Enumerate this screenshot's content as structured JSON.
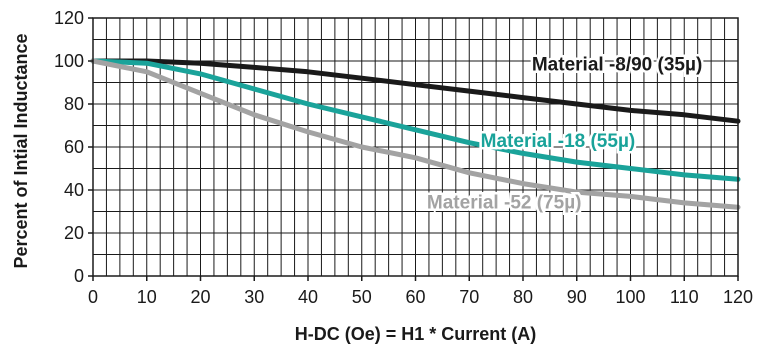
{
  "chart_data": {
    "type": "line",
    "title": "",
    "xlabel": "H-DC (Oe) = H1 * Current (A)",
    "ylabel": "Percent of Intial Inductance",
    "xlim": [
      0,
      120
    ],
    "ylim": [
      0,
      120
    ],
    "x_ticks": [
      "0",
      "10",
      "20",
      "30",
      "40",
      "50",
      "60",
      "70",
      "80",
      "90",
      "100",
      "110",
      "120"
    ],
    "y_ticks": [
      "0",
      "20",
      "40",
      "60",
      "80",
      "100",
      "120"
    ],
    "grid": true,
    "series": [
      {
        "name": "Material -8/90 (35µ)",
        "color": "#1a1a1a",
        "points": [
          [
            0,
            100
          ],
          [
            10,
            100
          ],
          [
            20,
            99
          ],
          [
            30,
            97
          ],
          [
            40,
            95
          ],
          [
            50,
            92
          ],
          [
            60,
            89
          ],
          [
            70,
            86
          ],
          [
            80,
            83
          ],
          [
            90,
            80
          ],
          [
            100,
            77
          ],
          [
            110,
            75
          ],
          [
            120,
            72
          ]
        ]
      },
      {
        "name": "Material -18 (55µ)",
        "color": "#1aa39a",
        "points": [
          [
            0,
            100
          ],
          [
            10,
            99
          ],
          [
            20,
            94
          ],
          [
            30,
            87
          ],
          [
            40,
            80
          ],
          [
            50,
            74
          ],
          [
            60,
            68
          ],
          [
            70,
            62
          ],
          [
            80,
            57
          ],
          [
            90,
            53
          ],
          [
            100,
            50
          ],
          [
            110,
            47
          ],
          [
            120,
            45
          ]
        ]
      },
      {
        "name": "Material -52 (75µ)",
        "color": "#a3a3a3",
        "points": [
          [
            0,
            100
          ],
          [
            10,
            95
          ],
          [
            20,
            85
          ],
          [
            30,
            75
          ],
          [
            40,
            67
          ],
          [
            50,
            60
          ],
          [
            60,
            55
          ],
          [
            70,
            48
          ],
          [
            80,
            43
          ],
          [
            90,
            39
          ],
          [
            100,
            37
          ],
          [
            110,
            34
          ],
          [
            120,
            32
          ]
        ]
      }
    ]
  }
}
